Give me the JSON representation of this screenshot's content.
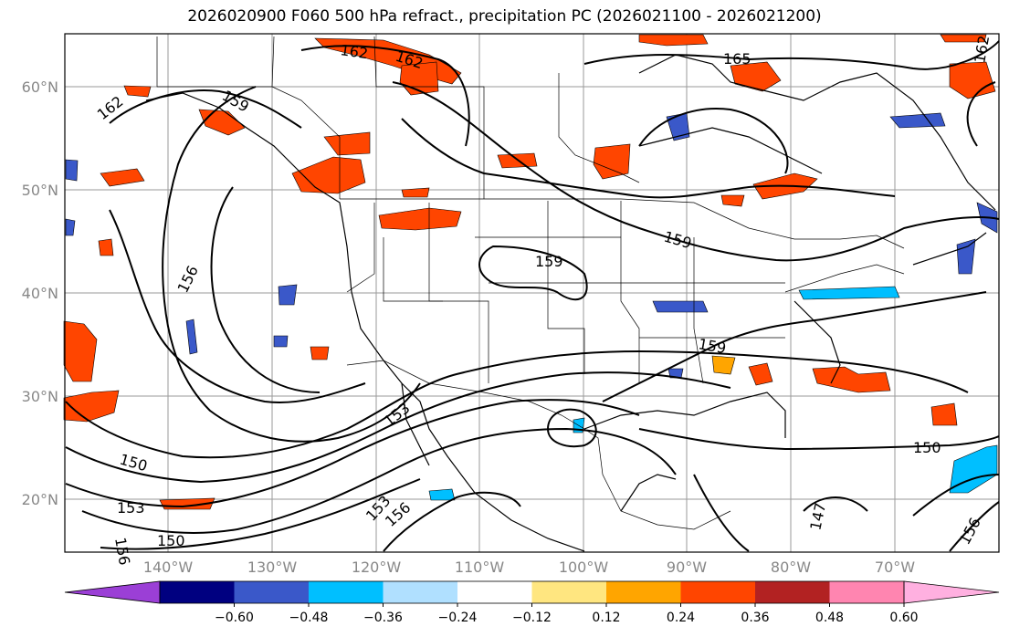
{
  "title": "2026020900 F060 500 hPa refract., precipitation PC (2026021100 - 2026021200)",
  "lat_ticks": [
    "60°N",
    "50°N",
    "40°N",
    "30°N",
    "20°N"
  ],
  "lon_ticks": [
    "140°W",
    "130°W",
    "120°W",
    "110°W",
    "100°W",
    "90°W",
    "80°W",
    "70°W"
  ],
  "colorbar": {
    "labels": [
      "−0.60",
      "−0.48",
      "−0.36",
      "−0.24",
      "−0.12",
      "0.12",
      "0.24",
      "0.36",
      "0.48",
      "0.60"
    ],
    "colors": [
      "#9b3fd6",
      "#000080",
      "#3a58c9",
      "#00bfff",
      "#b0e0ff",
      "#ffffff",
      "#ffe680",
      "#ffa500",
      "#ff4500",
      "#b22222",
      "#ff85b0",
      "#ffb0e0"
    ]
  },
  "contour_labels": [
    {
      "text": "162"
    },
    {
      "text": "162"
    },
    {
      "text": "165"
    },
    {
      "text": "162"
    },
    {
      "text": "159"
    },
    {
      "text": "156"
    },
    {
      "text": "159"
    },
    {
      "text": "159"
    },
    {
      "text": "159"
    },
    {
      "text": "153"
    },
    {
      "text": "150"
    },
    {
      "text": "153"
    },
    {
      "text": "156"
    },
    {
      "text": "150"
    },
    {
      "text": "153"
    },
    {
      "text": "156"
    },
    {
      "text": "150"
    },
    {
      "text": "147"
    },
    {
      "text": "156"
    },
    {
      "text": "162"
    }
  ],
  "colors": {
    "contour": "#000000",
    "grid": "#9a9a9a",
    "orange": "#ff4500",
    "yellow": "#ffa500",
    "blue": "#3a58c9",
    "cyan": "#00bfff",
    "red": "#b22222"
  }
}
